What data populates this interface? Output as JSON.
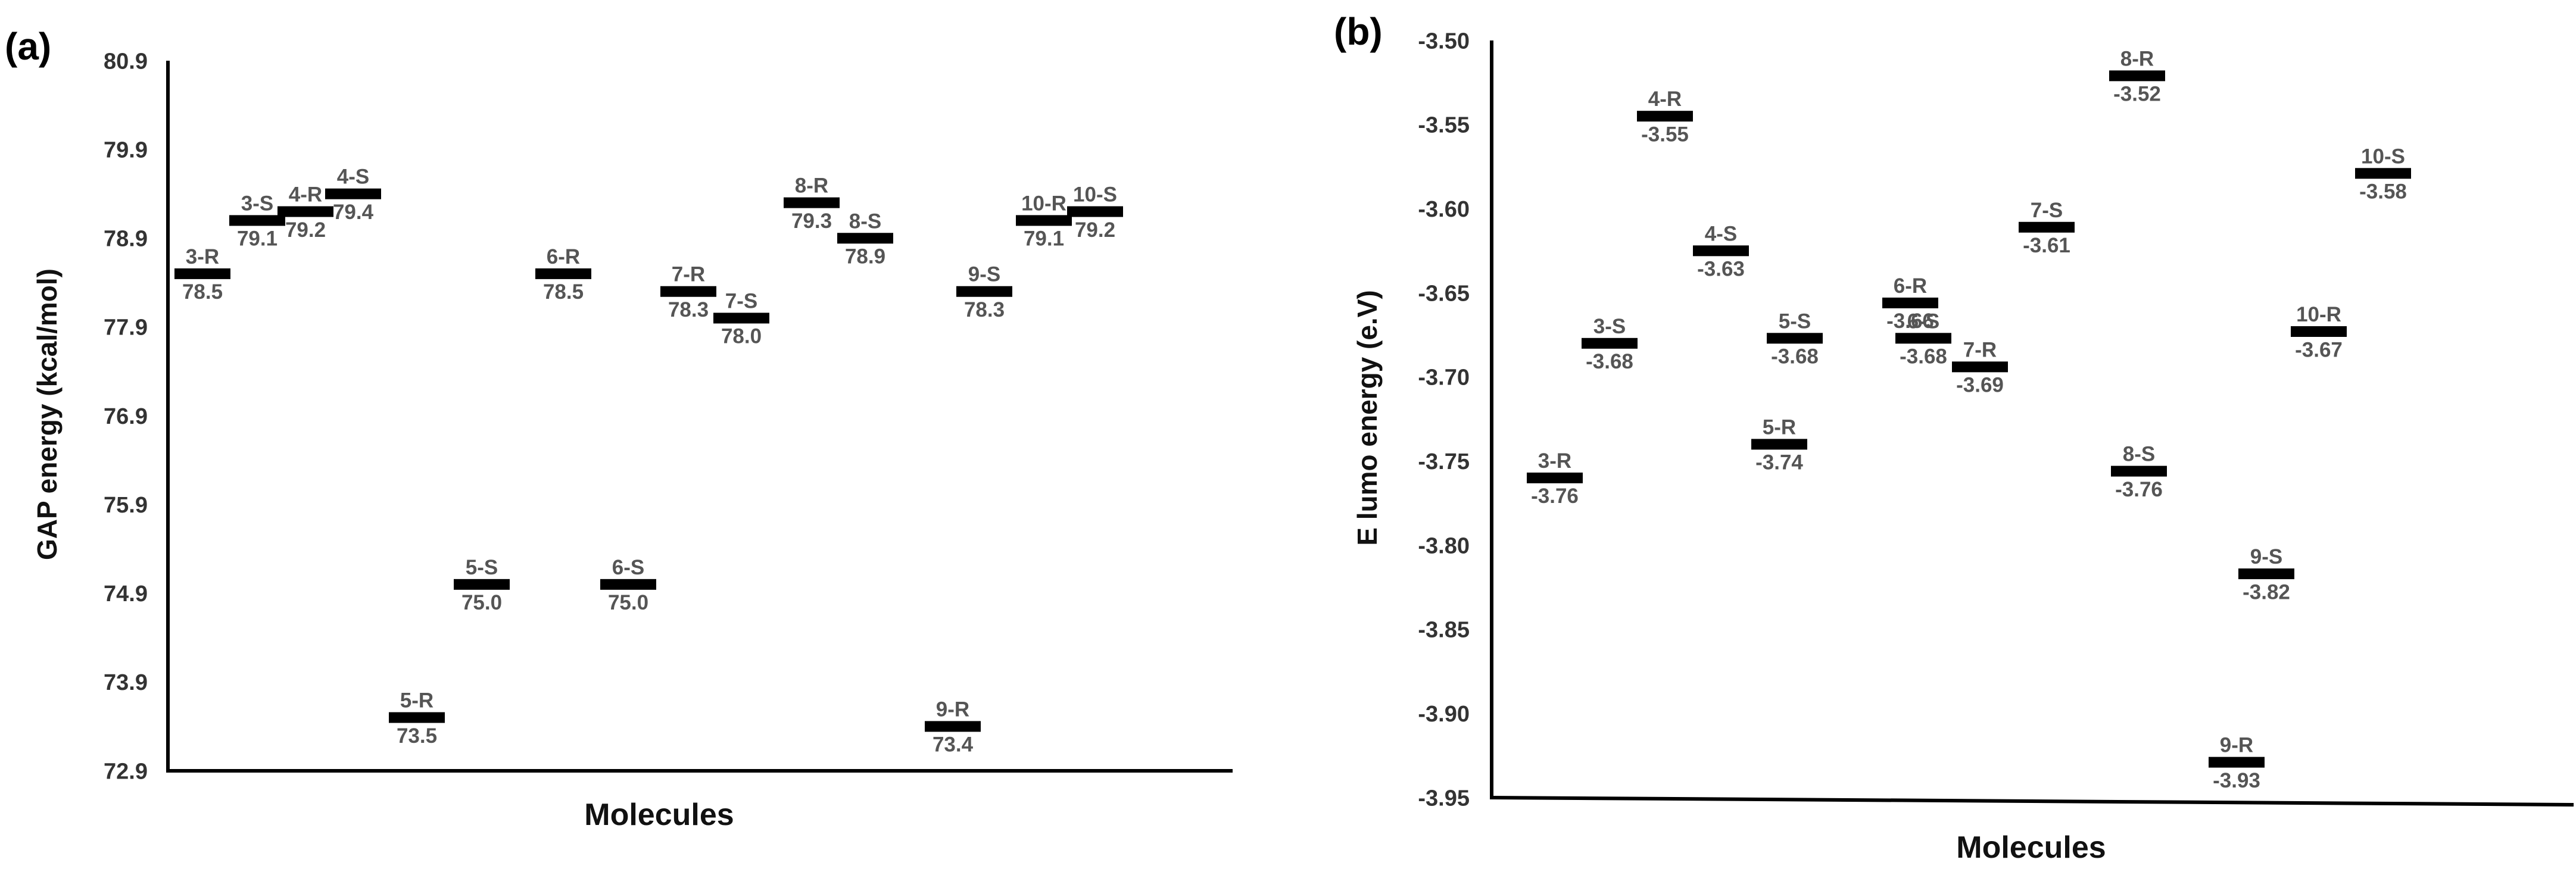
{
  "chart_data": [
    {
      "type": "scatter",
      "panel_label": "(a)",
      "xlabel": "Molecules",
      "ylabel": "GAP energy (kcal/mol)",
      "ylim": [
        72.9,
        80.9
      ],
      "yticks": [
        "80.9",
        "79.9",
        "78.9",
        "77.9",
        "76.9",
        "75.9",
        "74.9",
        "73.9",
        "72.9"
      ],
      "grid": false,
      "points": [
        {
          "name": "3-R",
          "value": 78.5,
          "value_label": "78.5"
        },
        {
          "name": "3-S",
          "value": 79.1,
          "value_label": "79.1"
        },
        {
          "name": "4-R",
          "value": 79.2,
          "value_label": "79.2"
        },
        {
          "name": "4-S",
          "value": 79.4,
          "value_label": "79.4"
        },
        {
          "name": "5-R",
          "value": 73.5,
          "value_label": "73.5"
        },
        {
          "name": "5-S",
          "value": 75.0,
          "value_label": "75.0"
        },
        {
          "name": "6-R",
          "value": 78.5,
          "value_label": "78.5"
        },
        {
          "name": "6-S",
          "value": 75.0,
          "value_label": "75.0"
        },
        {
          "name": "7-R",
          "value": 78.3,
          "value_label": "78.3"
        },
        {
          "name": "7-S",
          "value": 78.0,
          "value_label": "78.0"
        },
        {
          "name": "8-R",
          "value": 79.3,
          "value_label": "79.3"
        },
        {
          "name": "8-S",
          "value": 78.9,
          "value_label": "78.9"
        },
        {
          "name": "9-R",
          "value": 73.4,
          "value_label": "73.4"
        },
        {
          "name": "9-S",
          "value": 78.3,
          "value_label": "78.3"
        },
        {
          "name": "10-R",
          "value": 79.1,
          "value_label": "79.1"
        },
        {
          "name": "10-S",
          "value": 79.2,
          "value_label": "79.2"
        }
      ]
    },
    {
      "type": "scatter",
      "panel_label": "(b)",
      "xlabel": "Molecules",
      "ylabel": "E lumo energy (e.V)",
      "ylim": [
        -3.95,
        -3.5
      ],
      "yticks": [
        "-3.50",
        "-3.55",
        "-3.60",
        "-3.65",
        "-3.70",
        "-3.75",
        "-3.80",
        "-3.85",
        "-3.90",
        "-3.95"
      ],
      "grid": false,
      "points": [
        {
          "name": "3-R",
          "value": -3.76,
          "value_label": "-3.76"
        },
        {
          "name": "3-S",
          "value": -3.68,
          "value_label": "-3.68"
        },
        {
          "name": "4-R",
          "value": -3.545,
          "value_label": "-3.55"
        },
        {
          "name": "4-S",
          "value": -3.625,
          "value_label": "-3.63"
        },
        {
          "name": "5-R",
          "value": -3.74,
          "value_label": "-3.74"
        },
        {
          "name": "5-S",
          "value": -3.677,
          "value_label": "-3.68"
        },
        {
          "name": "6-R",
          "value": -3.656,
          "value_label": "-3.66"
        },
        {
          "name": "6-S",
          "value": -3.677,
          "value_label": "-3.68"
        },
        {
          "name": "7-R",
          "value": -3.694,
          "value_label": "-3.69"
        },
        {
          "name": "7-S",
          "value": -3.611,
          "value_label": "-3.61"
        },
        {
          "name": "8-R",
          "value": -3.521,
          "value_label": "-3.52"
        },
        {
          "name": "8-S",
          "value": -3.756,
          "value_label": "-3.76"
        },
        {
          "name": "9-R",
          "value": -3.929,
          "value_label": "-3.93"
        },
        {
          "name": "9-S",
          "value": -3.817,
          "value_label": "-3.82"
        },
        {
          "name": "10-R",
          "value": -3.673,
          "value_label": "-3.67"
        },
        {
          "name": "10-S",
          "value": -3.579,
          "value_label": "-3.58"
        }
      ]
    }
  ]
}
